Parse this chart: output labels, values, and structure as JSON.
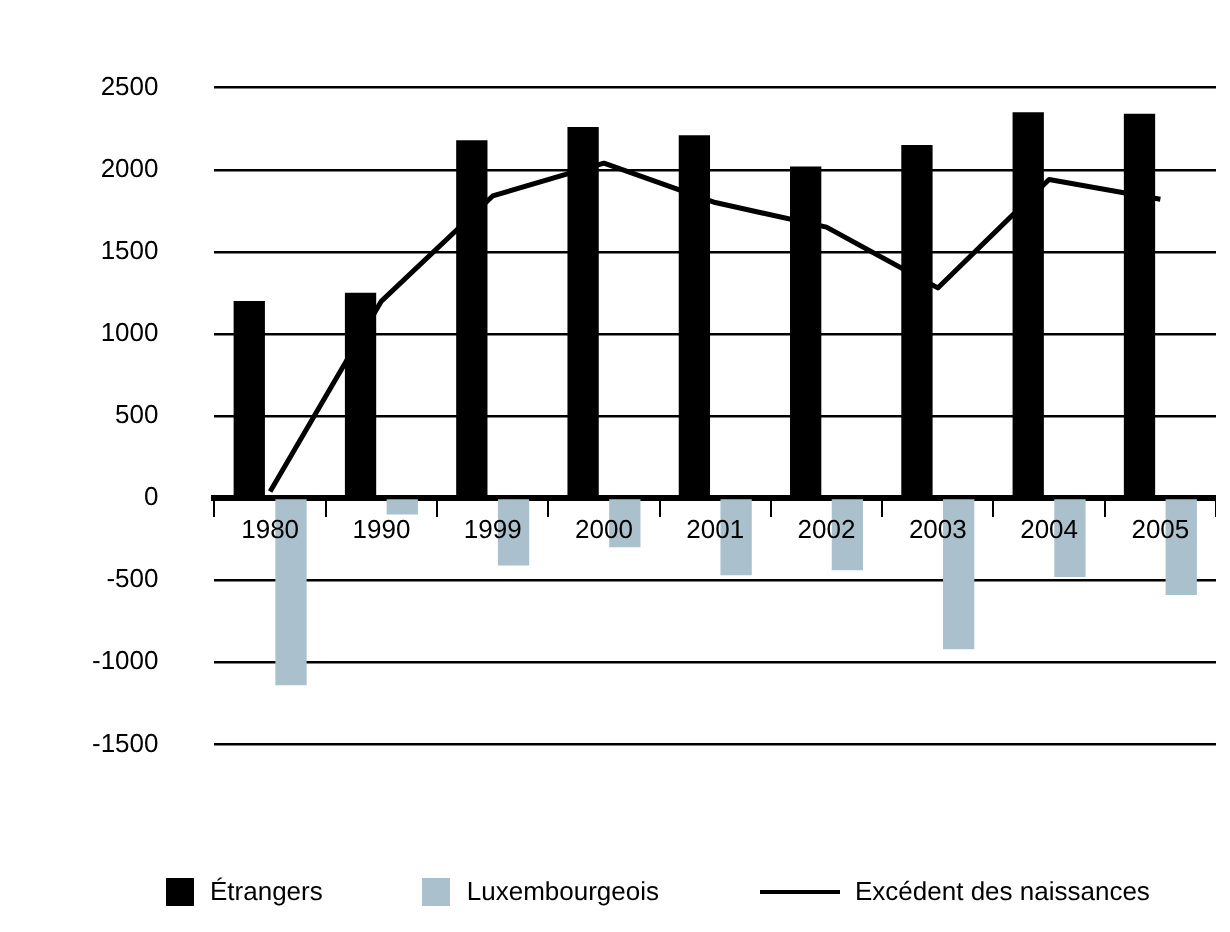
{
  "chart_data": {
    "type": "bar",
    "categories": [
      "1980",
      "1990",
      "1999",
      "2000",
      "2001",
      "2002",
      "2003",
      "2004",
      "2005"
    ],
    "series": [
      {
        "name": "Étrangers",
        "color": "#000000",
        "values": [
          1200,
          1250,
          2180,
          2260,
          2210,
          2020,
          2150,
          2350,
          2340
        ]
      },
      {
        "name": "Luxembourgeois",
        "color": "#aac0cd",
        "values": [
          -1140,
          -100,
          -410,
          -300,
          -470,
          -440,
          -920,
          -480,
          -590
        ]
      },
      {
        "name": "Excédent des naissances",
        "type": "line",
        "color": "#000000",
        "values": [
          40,
          1200,
          1840,
          2040,
          1800,
          1650,
          1280,
          1940,
          1820
        ],
        "marker": "none",
        "line_style": "solid"
      }
    ],
    "ylim": [
      -1500,
      2500
    ],
    "yticks": [
      -1500,
      -1000,
      -500,
      0,
      500,
      1000,
      1500,
      2000,
      2500
    ],
    "grid": "y",
    "legend": "bottom"
  }
}
